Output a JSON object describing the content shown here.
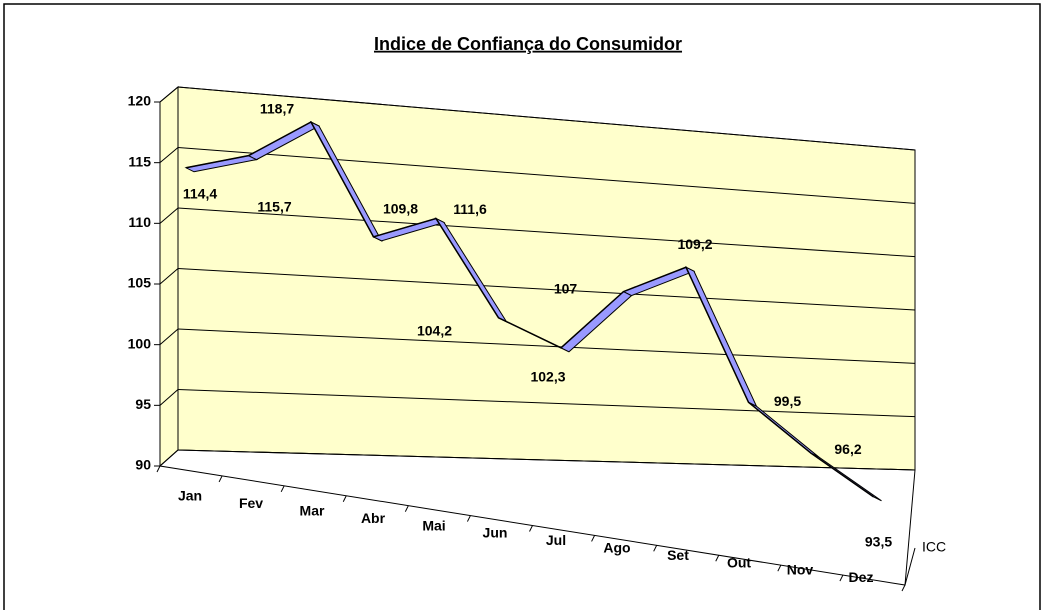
{
  "chart_data": {
    "type": "line",
    "title": "Indice de Confiança do Consumidor",
    "categories": [
      "Jan",
      "Fev",
      "Mar",
      "Abr",
      "Mai",
      "Jun",
      "Jul",
      "Ago",
      "Set",
      "Out",
      "Nov",
      "Dez"
    ],
    "series": [
      {
        "name": "ICC",
        "color": "#9999ff",
        "values": [
          114.4,
          115.7,
          118.7,
          109.8,
          111.6,
          104.2,
          102.3,
          107,
          109.2,
          99.5,
          96.2,
          93.5
        ],
        "value_labels": [
          "114,4",
          "115,7",
          "118,7",
          "109,8",
          "111,6",
          "104,2",
          "102,3",
          "107",
          "109,2",
          "99,5",
          "96,2",
          "93,5"
        ]
      }
    ],
    "ylim": [
      90,
      120
    ],
    "yticks": [
      90,
      95,
      100,
      105,
      110,
      115,
      120
    ],
    "grid": true,
    "wall_color": "#ffffcc"
  }
}
